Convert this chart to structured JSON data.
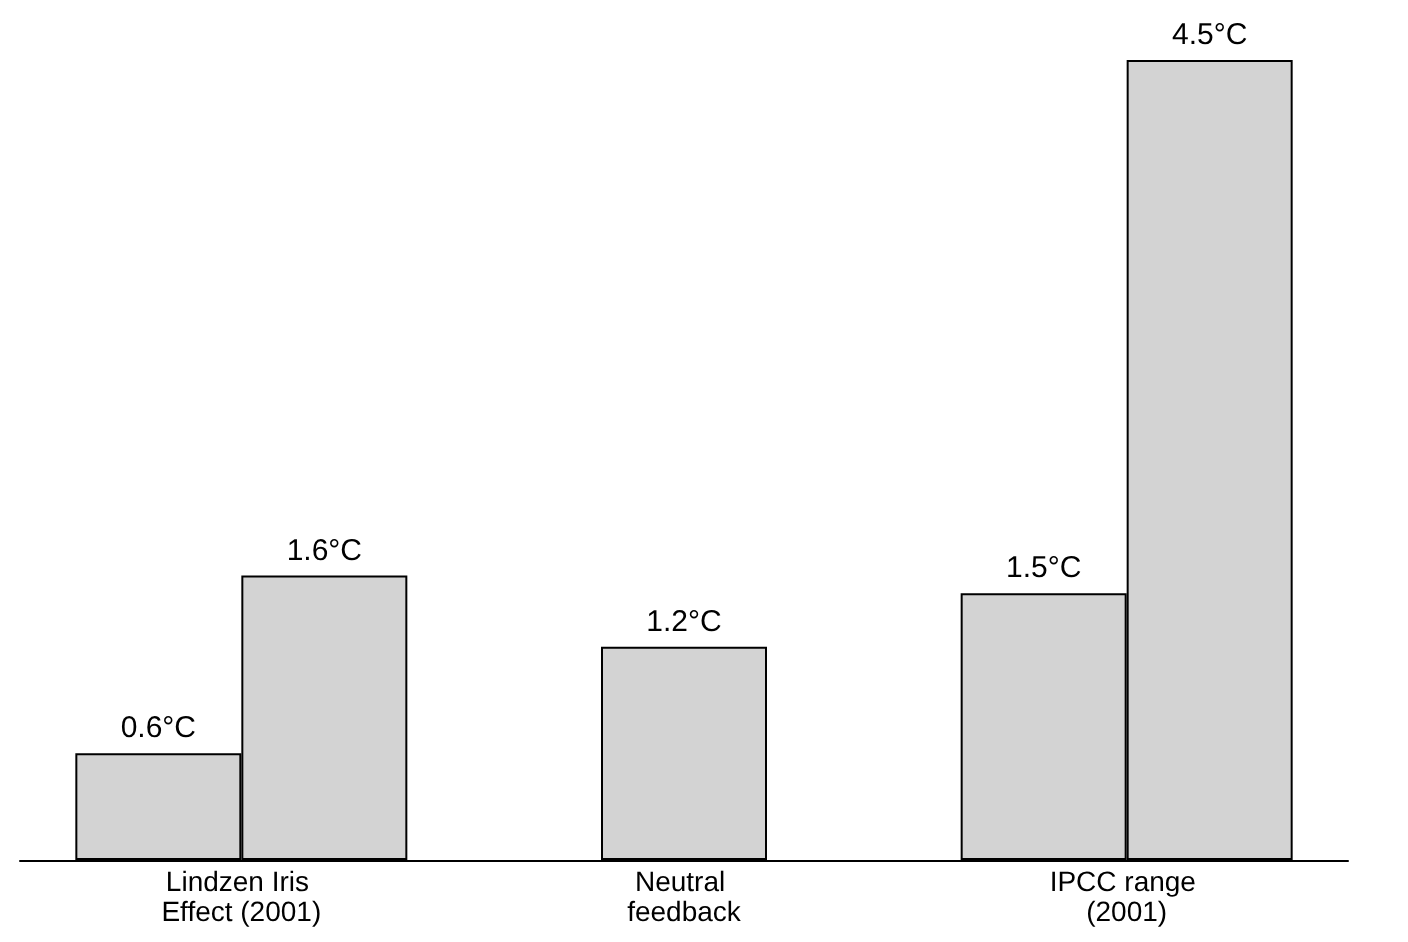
{
  "chart_data": {
    "type": "bar",
    "categories": [
      "Lindzen Iris Effect (2001)",
      "Neutral feedback",
      "IPCC range (2001)"
    ],
    "series": [
      {
        "color": "#d3d3d3",
        "values": [
          0.6,
          1.2,
          1.5
        ],
        "value_labels": [
          "0.6°C",
          "1.2°C",
          "1.5°C"
        ]
      },
      {
        "color": "#d3d3d3",
        "values": [
          1.6,
          null,
          4.5
        ],
        "value_labels": [
          "1.6°C",
          null,
          "4.5°C"
        ]
      }
    ],
    "ylim": [
      0,
      4.5
    ],
    "tick_labels": "x"
  }
}
